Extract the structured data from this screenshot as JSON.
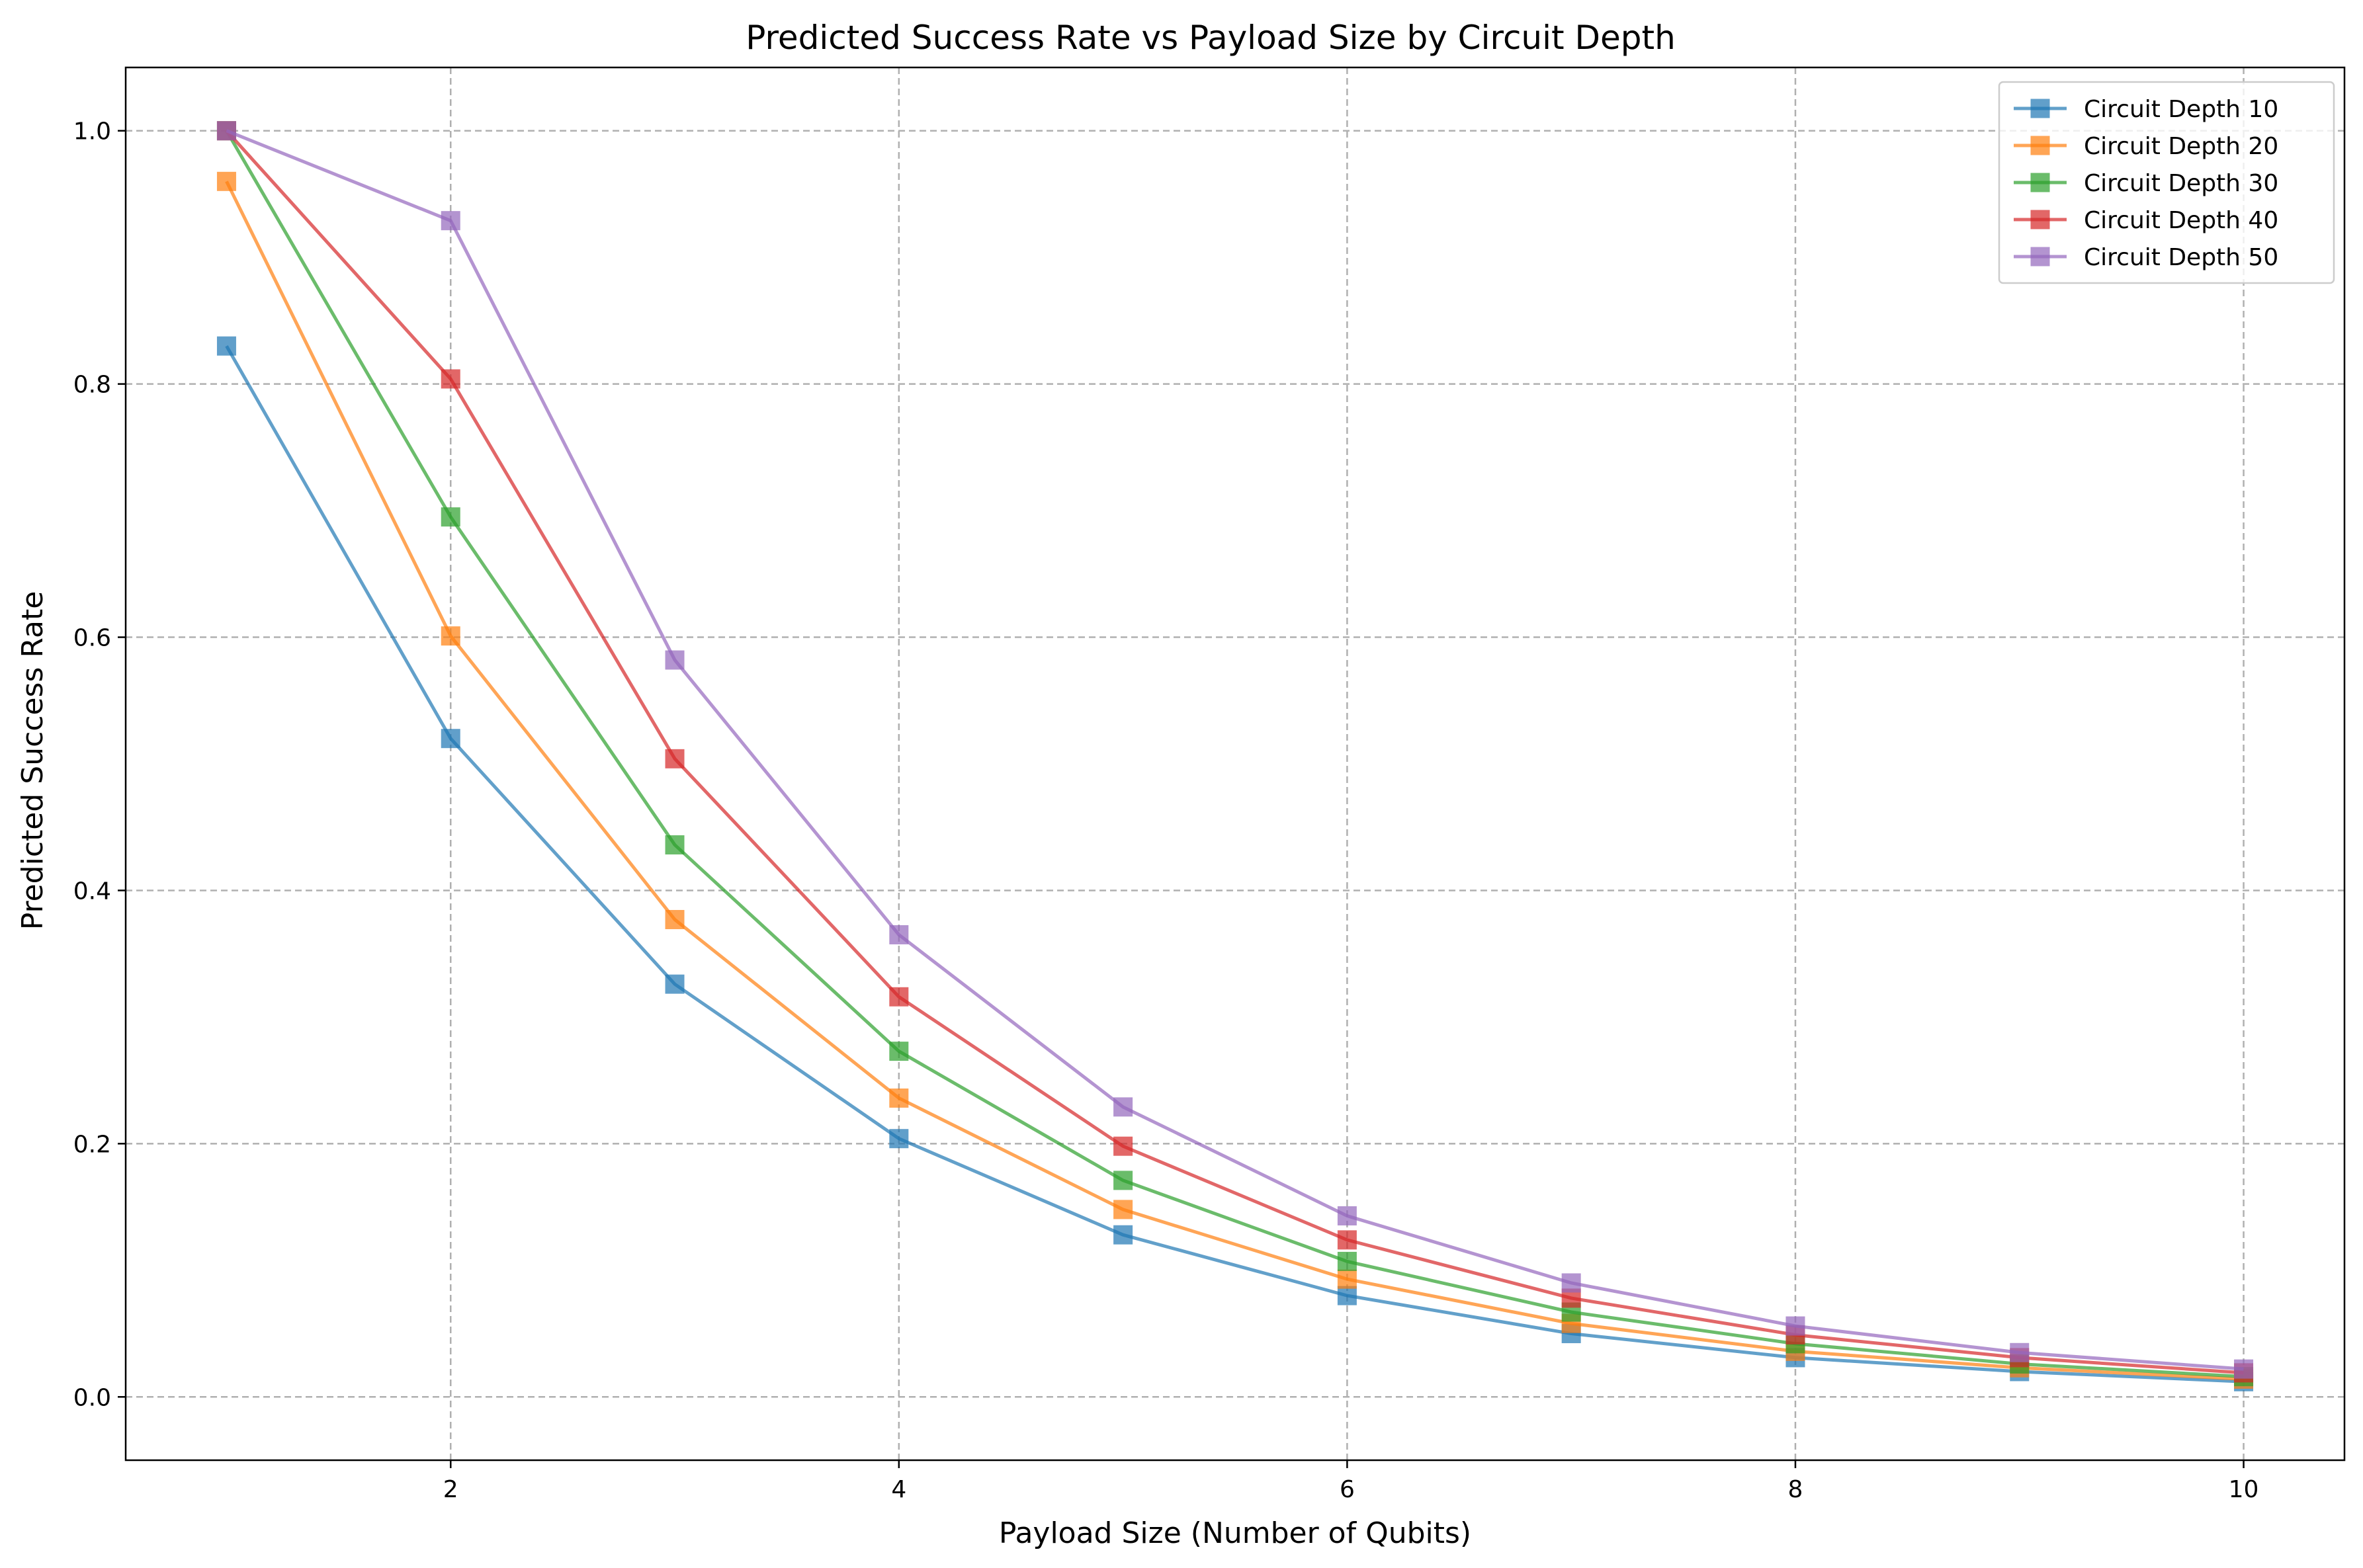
{
  "chart_data": {
    "type": "line",
    "title": "Predicted Success Rate vs Payload Size by Circuit Depth",
    "xlabel": "Payload Size (Number of Qubits)",
    "ylabel": "Predicted Success Rate",
    "xlim": [
      0.55,
      10.45
    ],
    "ylim": [
      -0.05,
      1.05
    ],
    "xticks": [
      2,
      4,
      6,
      8,
      10
    ],
    "xtick_labels": [
      "2",
      "4",
      "6",
      "8",
      "10"
    ],
    "yticks": [
      0.0,
      0.2,
      0.4,
      0.6,
      0.8,
      1.0
    ],
    "ytick_labels": [
      "0.0",
      "0.2",
      "0.4",
      "0.6",
      "0.8",
      "1.0"
    ],
    "grid": true,
    "legend_position": "top-right",
    "marker": "square",
    "x": [
      1,
      2,
      3,
      4,
      5,
      6,
      7,
      8,
      9,
      10
    ],
    "series": [
      {
        "name": "Circuit Depth 10",
        "color": "#1f77b4",
        "values": [
          0.83,
          0.52,
          0.326,
          0.204,
          0.128,
          0.08,
          0.05,
          0.031,
          0.02,
          0.012
        ]
      },
      {
        "name": "Circuit Depth 20",
        "color": "#ff7f0e",
        "values": [
          0.96,
          0.601,
          0.377,
          0.236,
          0.148,
          0.093,
          0.058,
          0.036,
          0.023,
          0.014
        ]
      },
      {
        "name": "Circuit Depth 30",
        "color": "#2ca02c",
        "values": [
          1.0,
          0.695,
          0.436,
          0.273,
          0.171,
          0.107,
          0.067,
          0.042,
          0.026,
          0.016
        ]
      },
      {
        "name": "Circuit Depth 40",
        "color": "#d62728",
        "values": [
          1.0,
          0.804,
          0.504,
          0.316,
          0.198,
          0.124,
          0.078,
          0.049,
          0.031,
          0.019
        ]
      },
      {
        "name": "Circuit Depth 50",
        "color": "#9467bd",
        "values": [
          1.0,
          0.929,
          0.582,
          0.365,
          0.229,
          0.143,
          0.09,
          0.056,
          0.035,
          0.022
        ]
      }
    ]
  }
}
